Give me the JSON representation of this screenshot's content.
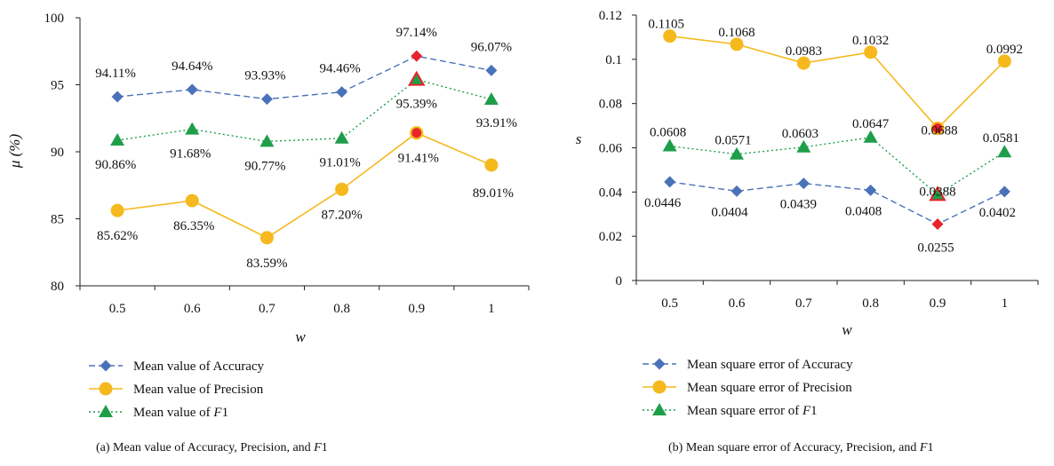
{
  "colors": {
    "accuracy": "#4a72b8",
    "precision": "#f5b91d",
    "f1": "#1f9e4a",
    "highlight": "#e8232b",
    "axis": "#222222"
  },
  "chart_data": [
    {
      "type": "line",
      "categories": [
        "0.5",
        "0.6",
        "0.7",
        "0.8",
        "0.9",
        "1"
      ],
      "xlabel": "w",
      "ylabel": "μ (%)",
      "ylim": [
        80,
        100
      ],
      "yticks": [
        80,
        85,
        90,
        95,
        100
      ],
      "grid": false,
      "legend": "bottom",
      "highlight_category": "0.9",
      "caption": "(a)  Mean value of Accuracy, Precision, and F1",
      "series": [
        {
          "key": "accuracy",
          "name": "Mean value of Accuracy",
          "marker": "diamond",
          "dash": "dashed",
          "values": [
            94.11,
            94.64,
            93.93,
            94.46,
            97.14,
            96.07
          ],
          "labels": [
            "94.11%",
            "94.64%",
            "93.93%",
            "94.46%",
            "97.14%",
            "96.07%"
          ]
        },
        {
          "key": "precision",
          "name": "Mean value of Precision",
          "marker": "circle",
          "dash": "solid",
          "values": [
            85.62,
            86.35,
            83.59,
            87.2,
            91.41,
            89.01
          ],
          "labels": [
            "85.62%",
            "86.35%",
            "83.59%",
            "87.20%",
            "91.41%",
            "89.01%"
          ]
        },
        {
          "key": "f1",
          "name": "Mean value of F1",
          "marker": "triangle",
          "dash": "dotted",
          "values": [
            90.86,
            91.68,
            90.77,
            91.01,
            95.39,
            93.91
          ],
          "labels": [
            "90.86%",
            "91.68%",
            "90.77%",
            "91.01%",
            "95.39%",
            "93.91%"
          ]
        }
      ]
    },
    {
      "type": "line",
      "categories": [
        "0.5",
        "0.6",
        "0.7",
        "0.8",
        "0.9",
        "1"
      ],
      "xlabel": "w",
      "ylabel": "s",
      "ylim": [
        0,
        0.12
      ],
      "yticks": [
        "0",
        "0.02",
        "0.04",
        "0.06",
        "0.08",
        "0.1",
        "0.12"
      ],
      "grid": false,
      "legend": "bottom",
      "highlight_category": "0.9",
      "caption": "(b)  Mean square error of Accuracy, Precision, and F1",
      "series": [
        {
          "key": "accuracy",
          "name": "Mean square error of Accuracy",
          "marker": "diamond",
          "dash": "dashed",
          "values": [
            0.0446,
            0.0404,
            0.0439,
            0.0408,
            0.0255,
            0.0402
          ],
          "labels": [
            "0.0446",
            "0.0404",
            "0.0439",
            "0.0408",
            "0.0255",
            "0.0402"
          ]
        },
        {
          "key": "precision",
          "name": "Mean square error of Precision",
          "marker": "circle",
          "dash": "solid",
          "values": [
            0.1105,
            0.1068,
            0.0983,
            0.1032,
            0.0688,
            0.0992
          ],
          "labels": [
            "0.1105",
            "0.1068",
            "0.0983",
            "0.1032",
            "0.0688",
            "0.0992"
          ]
        },
        {
          "key": "f1",
          "name": "Mean square error of F1",
          "marker": "triangle",
          "dash": "dotted",
          "values": [
            0.0608,
            0.0571,
            0.0603,
            0.0647,
            0.0388,
            0.0581
          ],
          "labels": [
            "0.0608",
            "0.0571",
            "0.0603",
            "0.0647",
            "0.0388",
            "0.0581"
          ]
        }
      ]
    }
  ]
}
